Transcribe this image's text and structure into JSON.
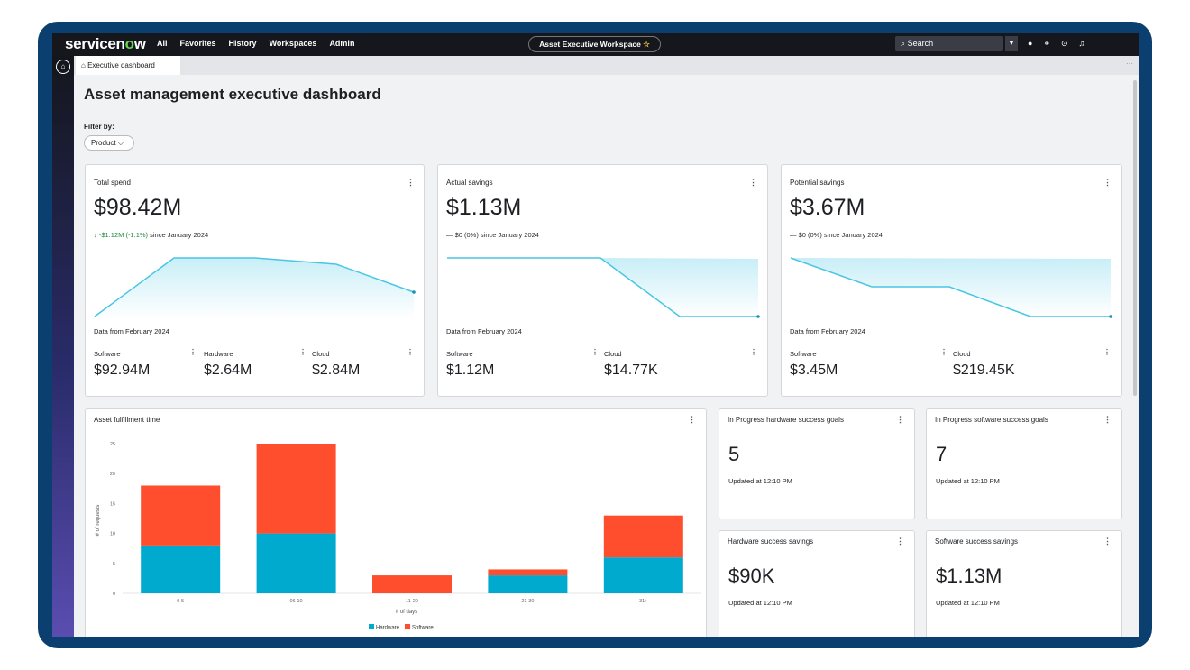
{
  "topbar": {
    "brand": "servicen",
    "brand_o": "o",
    "brand_end": "w",
    "nav": [
      "All",
      "Favorites",
      "History",
      "Workspaces",
      "Admin"
    ],
    "workspace": "Asset Executive Workspace",
    "search_placeholder": "Search"
  },
  "tab": {
    "label": "Executive dashboard"
  },
  "page": {
    "title": "Asset management executive dashboard"
  },
  "filter": {
    "label": "Filter by:",
    "value": "Product"
  },
  "cards": {
    "total_spend": {
      "title": "Total spend",
      "value": "$98.42M",
      "delta": "-$1.12M (-1.1%)",
      "delta_suffix": "since January 2024",
      "data_from": "Data from February 2024",
      "subs": [
        {
          "label": "Software",
          "value": "$92.94M"
        },
        {
          "label": "Hardware",
          "value": "$2.64M"
        },
        {
          "label": "Cloud",
          "value": "$2.84M"
        }
      ]
    },
    "actual_savings": {
      "title": "Actual savings",
      "value": "$1.13M",
      "delta": "— $0 (0%) since January 2024",
      "data_from": "Data from February 2024",
      "subs": [
        {
          "label": "Software",
          "value": "$1.12M"
        },
        {
          "label": "Cloud",
          "value": "$14.77K"
        }
      ]
    },
    "potential_savings": {
      "title": "Potential savings",
      "value": "$3.67M",
      "delta": "— $0 (0%) since January 2024",
      "data_from": "Data from February 2024",
      "subs": [
        {
          "label": "Software",
          "value": "$3.45M"
        },
        {
          "label": "Cloud",
          "value": "$219.45K"
        }
      ]
    }
  },
  "kpis": {
    "hw_goals": {
      "title": "In Progress hardware success goals",
      "value": "5",
      "updated": "Updated at 12:10 PM"
    },
    "sw_goals": {
      "title": "In Progress software success goals",
      "value": "7",
      "updated": "Updated at 12:10 PM"
    },
    "hw_savings": {
      "title": "Hardware success savings",
      "value": "$90K",
      "updated": "Updated at 12:10 PM"
    },
    "sw_savings": {
      "title": "Software success savings",
      "value": "$1.13M",
      "updated": "Updated at 12:10 PM"
    }
  },
  "colors": {
    "hardware": "#00a9ce",
    "software": "#ff4e2e",
    "spark": "#48c6e4"
  },
  "chart_data": {
    "type": "bar",
    "stacked": true,
    "title": "Asset fulfillment time",
    "xlabel": "# of days",
    "ylabel": "# of requests",
    "categories": [
      "0-5",
      "06-10",
      "11-20",
      "21-30",
      "31+"
    ],
    "series": [
      {
        "name": "Hardware",
        "values": [
          8,
          10,
          0,
          3,
          6
        ]
      },
      {
        "name": "Software",
        "values": [
          10,
          15,
          3,
          1,
          7
        ]
      }
    ],
    "yticks": [
      0,
      5,
      10,
      15,
      20,
      25
    ],
    "ylim": [
      0,
      25
    ],
    "legend": "bottom"
  }
}
